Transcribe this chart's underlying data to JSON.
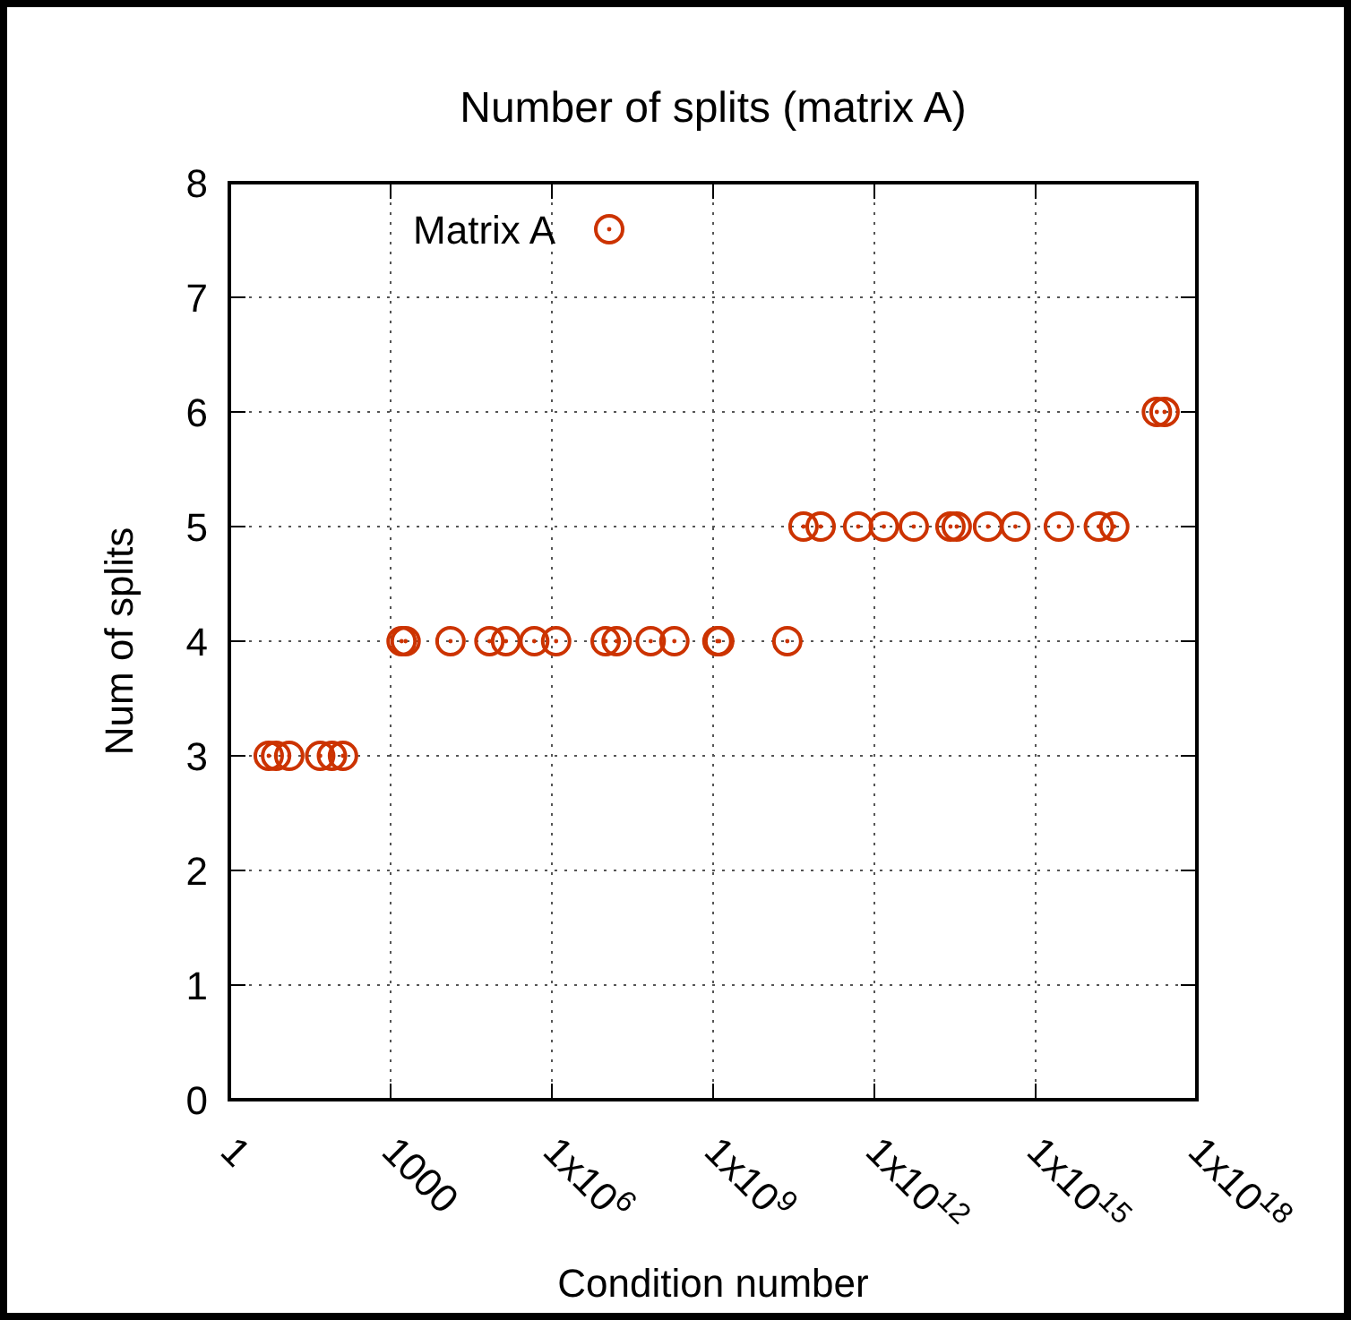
{
  "chart_data": {
    "type": "scatter",
    "title": "Number of splits (matrix A)",
    "xlabel": "Condition number",
    "ylabel": "Num of splits",
    "log": "x",
    "grid": true,
    "legend": "top left",
    "marker": "circle",
    "xlim": [
      1,
      1e+18
    ],
    "ylim": [
      0,
      8
    ],
    "xticks": [
      1,
      1000,
      {
        "value": 1000000.0,
        "label": "1x10$^{6}$"
      },
      {
        "value": 1000000000.0,
        "label": "1x10$^{9}$"
      },
      {
        "value": 1000000000000.0,
        "label": "1x10$^{12}$"
      },
      {
        "value": 1000000000000000.0,
        "label": "1x10$^{15}$"
      },
      {
        "value": 1e+18,
        "label": "1x10$^{18}$"
      }
    ],
    "yticks": [
      0,
      1,
      2,
      3,
      4,
      5,
      6,
      7,
      8
    ],
    "series": [
      {
        "name": "Matrix A",
        "color": "#cc3300",
        "x": [
          5.4,
          7.4,
          13,
          49,
          81,
          130,
          1600,
          1900,
          13000,
          69000,
          140000,
          470000,
          1200000,
          10000000,
          16000000,
          69000000,
          190000000,
          1200000000,
          1300000000,
          24000000000,
          48000000000,
          100000000000,
          500000000000,
          1500000000000,
          5400000000000,
          26000000000000,
          34000000000000,
          130000000000000,
          420000000000000,
          2700000000000000,
          15000000000000000,
          29000000000000000,
          180000000000000000,
          250000000000000000
        ],
        "values": [
          3,
          3,
          3,
          3,
          3,
          3,
          4,
          4,
          4,
          4,
          4,
          4,
          4,
          4,
          4,
          4,
          4,
          4,
          4,
          4,
          5,
          5,
          5,
          5,
          5,
          5,
          5,
          5,
          5,
          5,
          5,
          5,
          6,
          6
        ]
      }
    ]
  }
}
